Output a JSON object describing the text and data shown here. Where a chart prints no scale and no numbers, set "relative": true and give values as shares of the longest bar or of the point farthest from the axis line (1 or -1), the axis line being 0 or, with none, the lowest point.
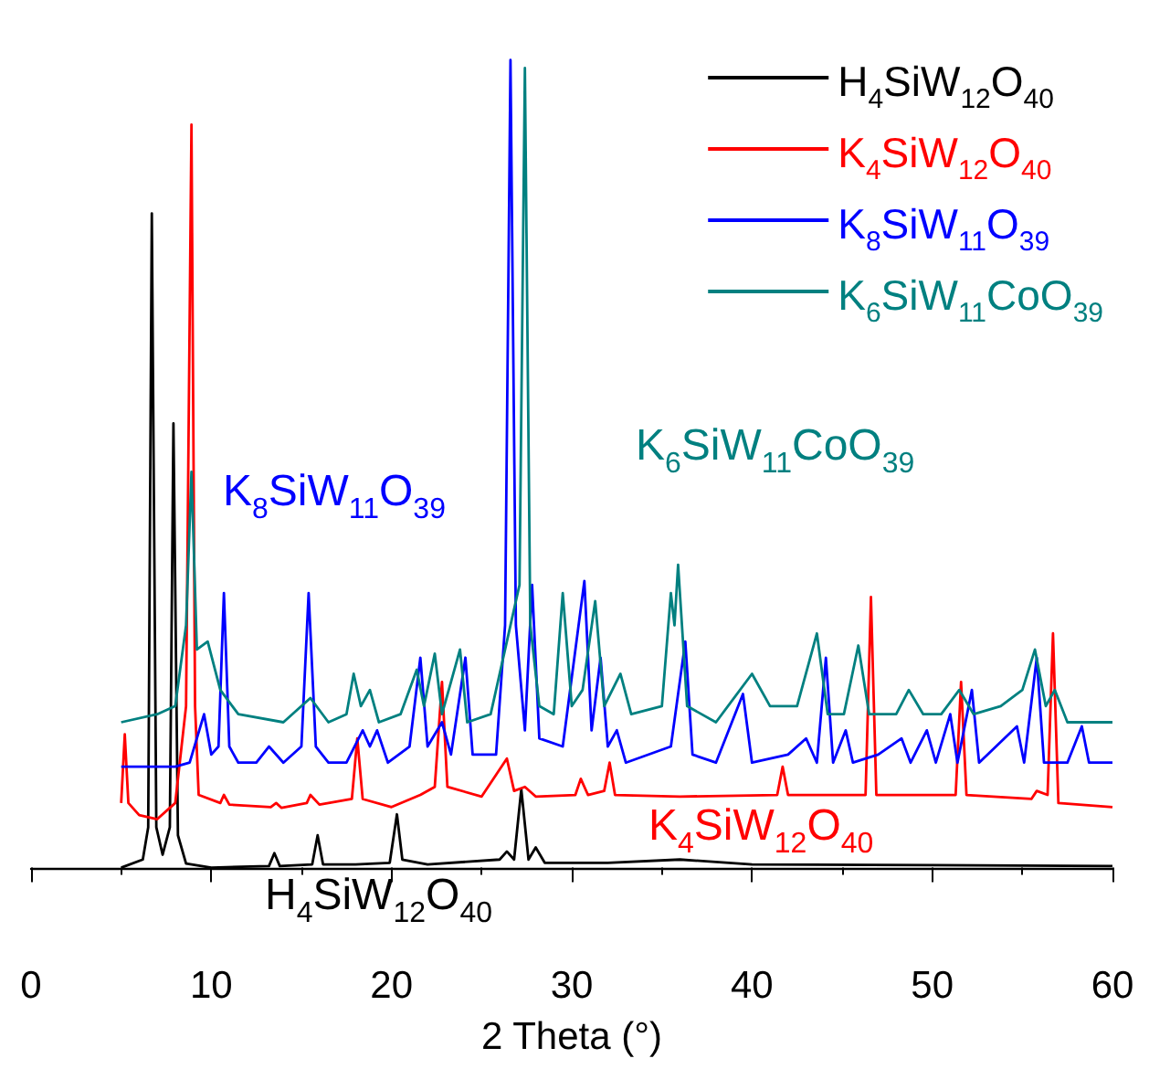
{
  "chart_data": {
    "type": "line",
    "relative": true,
    "xlabel": "2 Theta (°)",
    "xlim": [
      0,
      60
    ],
    "xticks": [
      0,
      10,
      20,
      30,
      40,
      50,
      60
    ],
    "legend": "top right",
    "annotations": [
      "H$_{4}$SiW$_{12}$O$_{40}$",
      "K$_{4}$SiW$_{12}$O$_{40}$",
      "K$_{8}$SiW$_{11}$O$_{39}$",
      "K$_{6}$SiW$_{11}$CoO$_{39}$"
    ],
    "series": [
      {
        "name": "H$_{4}$SiW$_{12}$O$_{40}$",
        "color": "#000000",
        "x": [
          5,
          6.2,
          6.5,
          6.7,
          6.95,
          7.3,
          7.7,
          7.9,
          8.15,
          8.6,
          10,
          13.2,
          13.5,
          13.8,
          15.6,
          15.9,
          16.2,
          18,
          19.9,
          20.3,
          20.6,
          22,
          26,
          26.4,
          26.8,
          27.2,
          27.6,
          28,
          28.5,
          32,
          36,
          40,
          50,
          60
        ],
        "values": [
          0,
          0.01,
          0.05,
          0.81,
          0.05,
          0.016,
          0.05,
          0.55,
          0.04,
          0.005,
          0,
          0.002,
          0.018,
          0.002,
          0.004,
          0.04,
          0.004,
          0.004,
          0.006,
          0.066,
          0.01,
          0.004,
          0.01,
          0.02,
          0.01,
          0.097,
          0.01,
          0.025,
          0.006,
          0.006,
          0.01,
          0.004,
          0.003,
          0.002
        ]
      },
      {
        "name": "K$_{4}$SiW$_{12}$O$_{40}$",
        "color": "#ff0000",
        "x": [
          5,
          5.2,
          5.4,
          6,
          7,
          8,
          8.6,
          8.9,
          9.1,
          9.3,
          10.5,
          10.7,
          11,
          13.3,
          13.6,
          13.9,
          15.3,
          15.5,
          16,
          17.8,
          18.1,
          18.4,
          20,
          21.6,
          22.4,
          22.8,
          23.1,
          25,
          26.4,
          26.8,
          27.4,
          28,
          30.2,
          30.5,
          30.9,
          31.8,
          32.1,
          32.4,
          36,
          41.4,
          41.7,
          42,
          46.3,
          46.6,
          46.9,
          51.3,
          51.6,
          51.9,
          55.5,
          55.8,
          56.4,
          56.7,
          57,
          60
        ],
        "values": [
          0.08,
          0.165,
          0.08,
          0.065,
          0.06,
          0.08,
          0.2,
          0.92,
          0.2,
          0.09,
          0.08,
          0.09,
          0.078,
          0.075,
          0.08,
          0.074,
          0.08,
          0.09,
          0.078,
          0.085,
          0.16,
          0.085,
          0.075,
          0.09,
          0.1,
          0.23,
          0.1,
          0.088,
          0.135,
          0.095,
          0.1,
          0.088,
          0.09,
          0.11,
          0.09,
          0.095,
          0.13,
          0.09,
          0.088,
          0.09,
          0.125,
          0.09,
          0.09,
          0.335,
          0.09,
          0.09,
          0.23,
          0.09,
          0.085,
          0.095,
          0.09,
          0.29,
          0.08,
          0.075
        ]
      },
      {
        "name": "K$_{8}$SiW$_{11}$O$_{39}$",
        "color": "#0000ff",
        "x": [
          5,
          8,
          8.8,
          9.6,
          10,
          10.4,
          10.7,
          11,
          11.5,
          12.5,
          13.2,
          14,
          15,
          15.4,
          15.8,
          16.5,
          17.5,
          18.4,
          18.8,
          19.2,
          19.8,
          21,
          21.6,
          22,
          22.8,
          23.3,
          24.1,
          24.5,
          25.8,
          26.3,
          26.6,
          26.9,
          27.4,
          27.8,
          28.2,
          29.5,
          30.7,
          31.1,
          31.6,
          32,
          32.5,
          33,
          35.5,
          36.3,
          36.7,
          38,
          39.5,
          40,
          42,
          43,
          43.6,
          44.1,
          44.5,
          45.2,
          45.6,
          47,
          48.3,
          48.8,
          49.7,
          50.2,
          51,
          51.4,
          52.2,
          52.6,
          54.7,
          55.1,
          55.8,
          56.2,
          57.5,
          58.3,
          58.7,
          60
        ],
        "values": [
          0.125,
          0.125,
          0.13,
          0.19,
          0.14,
          0.15,
          0.34,
          0.15,
          0.13,
          0.13,
          0.15,
          0.13,
          0.15,
          0.34,
          0.15,
          0.13,
          0.13,
          0.17,
          0.15,
          0.17,
          0.13,
          0.15,
          0.26,
          0.15,
          0.18,
          0.14,
          0.26,
          0.14,
          0.14,
          0.3,
          1.0,
          0.3,
          0.17,
          0.35,
          0.16,
          0.15,
          0.355,
          0.17,
          0.26,
          0.15,
          0.17,
          0.13,
          0.15,
          0.28,
          0.14,
          0.13,
          0.215,
          0.13,
          0.14,
          0.16,
          0.13,
          0.26,
          0.13,
          0.17,
          0.13,
          0.14,
          0.16,
          0.13,
          0.17,
          0.13,
          0.19,
          0.13,
          0.22,
          0.13,
          0.175,
          0.13,
          0.26,
          0.13,
          0.13,
          0.175,
          0.13,
          0.13
        ]
      },
      {
        "name": "K$_{6}$SiW$_{11}$CoO$_{39}$",
        "color": "#008080",
        "x": [
          5,
          7,
          8,
          8.6,
          8.9,
          9.2,
          9.8,
          10.5,
          11.5,
          14,
          15,
          15.5,
          16.5,
          17.5,
          17.9,
          18.3,
          18.8,
          19.3,
          20.5,
          21.4,
          21.8,
          22.4,
          22.8,
          23.8,
          24.2,
          25.5,
          26.6,
          27.1,
          27.4,
          27.7,
          28.2,
          29,
          29.5,
          30,
          30.6,
          31.3,
          31.8,
          32.7,
          33.3,
          35,
          35.5,
          35.7,
          35.9,
          36.4,
          38,
          40,
          41,
          42.5,
          43.6,
          44.2,
          45.1,
          45.9,
          46.5,
          48,
          48.7,
          49.5,
          50.5,
          51.5,
          52.3,
          53.8,
          55,
          55.7,
          56.3,
          56.8,
          57.5,
          60
        ],
        "values": [
          0.18,
          0.19,
          0.2,
          0.3,
          0.49,
          0.27,
          0.28,
          0.22,
          0.19,
          0.18,
          0.2,
          0.21,
          0.18,
          0.19,
          0.24,
          0.2,
          0.22,
          0.18,
          0.19,
          0.245,
          0.2,
          0.265,
          0.19,
          0.27,
          0.18,
          0.19,
          0.3,
          0.35,
          0.99,
          0.3,
          0.2,
          0.19,
          0.34,
          0.2,
          0.22,
          0.33,
          0.2,
          0.24,
          0.19,
          0.2,
          0.34,
          0.3,
          0.375,
          0.2,
          0.18,
          0.24,
          0.2,
          0.2,
          0.29,
          0.19,
          0.19,
          0.275,
          0.19,
          0.19,
          0.22,
          0.19,
          0.19,
          0.22,
          0.19,
          0.2,
          0.22,
          0.27,
          0.2,
          0.22,
          0.18,
          0.18
        ]
      }
    ]
  }
}
